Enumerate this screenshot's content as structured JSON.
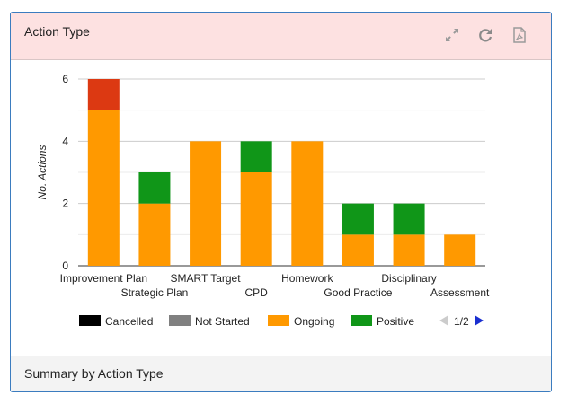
{
  "panel": {
    "title": "Action Type",
    "footer": "Summary by Action Type",
    "tools": [
      {
        "name": "expand-icon",
        "label": "Expand"
      },
      {
        "name": "refresh-icon",
        "label": "Refresh"
      },
      {
        "name": "pdf-icon",
        "label": "PDF"
      }
    ]
  },
  "chart_data": {
    "type": "bar",
    "stacked": true,
    "ylabel": "No. Actions",
    "ylim": [
      0,
      6
    ],
    "yticks": [
      0,
      2,
      4,
      6
    ],
    "grid": true,
    "categories": [
      "Improvement Plan",
      "Strategic Plan",
      "SMART Target",
      "CPD",
      "Homework",
      "Good Practice",
      "Disciplinary",
      "Assessment"
    ],
    "series": [
      {
        "name": "Cancelled",
        "color": "#000000",
        "values": [
          0,
          0,
          0,
          0,
          0,
          0,
          0,
          0
        ]
      },
      {
        "name": "Not Started",
        "color": "#808080",
        "values": [
          0,
          0,
          0,
          0,
          0,
          0,
          0,
          0
        ]
      },
      {
        "name": "Ongoing",
        "color": "#ff9900",
        "values": [
          5,
          2,
          4,
          3,
          4,
          1,
          1,
          1
        ]
      },
      {
        "name": "Positive",
        "color": "#109618",
        "values": [
          0,
          1,
          0,
          1,
          0,
          1,
          1,
          0
        ]
      },
      {
        "name": "",
        "color": "#dc3912",
        "values": [
          1,
          0,
          0,
          0,
          0,
          0,
          0,
          0
        ]
      }
    ],
    "legend": {
      "placement": "bottom",
      "entries": [
        "Cancelled",
        "Not Started",
        "Ongoing",
        "Positive"
      ],
      "page": "1/2"
    }
  }
}
